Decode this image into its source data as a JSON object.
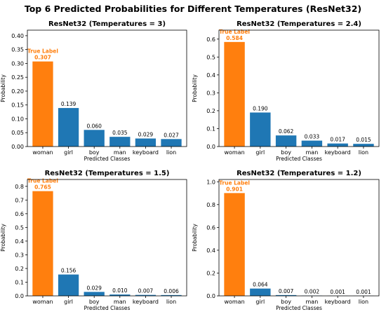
{
  "figure_title": "Top 6 Predicted Probabilities for Different Temperatures (ResNet32)",
  "colors": {
    "true_bar": "#ff7f0e",
    "other_bar": "#1f77b4",
    "true_label_text": "#ff7f0e"
  },
  "chart_data": [
    {
      "type": "bar",
      "title": "ResNet32 (Temperatures  = 3)",
      "xlabel": "Predicted Classes",
      "ylabel": "Probability",
      "ylim": [
        0,
        0.42
      ],
      "yticks": [
        "0.00",
        "0.05",
        "0.10",
        "0.15",
        "0.20",
        "0.25",
        "0.30",
        "0.35",
        "0.40"
      ],
      "categories": [
        "woman",
        "girl",
        "boy",
        "man",
        "keyboard",
        "lion"
      ],
      "values": [
        0.307,
        0.139,
        0.06,
        0.035,
        0.029,
        0.027
      ],
      "value_labels": [
        "0.307",
        "0.139",
        "0.060",
        "0.035",
        "0.029",
        "0.027"
      ],
      "true_index": 0,
      "true_label_text": "True Label"
    },
    {
      "type": "bar",
      "title": "ResNet32 (Temperatures  = 2.4)",
      "xlabel": "Predicted Classes",
      "ylabel": "Probability",
      "ylim": [
        0,
        0.65
      ],
      "yticks": [
        "0.0",
        "0.1",
        "0.2",
        "0.3",
        "0.4",
        "0.5",
        "0.6"
      ],
      "categories": [
        "woman",
        "girl",
        "boy",
        "man",
        "keyboard",
        "lion"
      ],
      "values": [
        0.584,
        0.19,
        0.062,
        0.033,
        0.017,
        0.015
      ],
      "value_labels": [
        "0.584",
        "0.190",
        "0.062",
        "0.033",
        "0.017",
        "0.015"
      ],
      "true_index": 0,
      "true_label_text": "True Label"
    },
    {
      "type": "bar",
      "title": "ResNet32 (Temperatures  = 1.5)",
      "xlabel": "Predicted Classes",
      "ylabel": "Probability",
      "ylim": [
        0,
        0.85
      ],
      "yticks": [
        "0.0",
        "0.1",
        "0.2",
        "0.3",
        "0.4",
        "0.5",
        "0.6",
        "0.7",
        "0.8"
      ],
      "categories": [
        "woman",
        "girl",
        "boy",
        "man",
        "keyboard",
        "lion"
      ],
      "values": [
        0.765,
        0.156,
        0.029,
        0.01,
        0.007,
        0.006
      ],
      "value_labels": [
        "0.765",
        "0.156",
        "0.029",
        "0.010",
        "0.007",
        "0.006"
      ],
      "true_index": 0,
      "true_label_text": "True Label"
    },
    {
      "type": "bar",
      "title": "ResNet32 (Temperatures  = 1.2)",
      "xlabel": "Predicted Classes",
      "ylabel": "Probability",
      "ylim": [
        0,
        1.02
      ],
      "yticks": [
        "0.0",
        "0.2",
        "0.4",
        "0.6",
        "0.8",
        "1.0"
      ],
      "categories": [
        "woman",
        "girl",
        "boy",
        "man",
        "keyboard",
        "lion"
      ],
      "values": [
        0.901,
        0.064,
        0.007,
        0.002,
        0.001,
        0.001
      ],
      "value_labels": [
        "0.901",
        "0.064",
        "0.007",
        "0.002",
        "0.001",
        "0.001"
      ],
      "true_index": 0,
      "true_label_text": "True Label"
    }
  ]
}
